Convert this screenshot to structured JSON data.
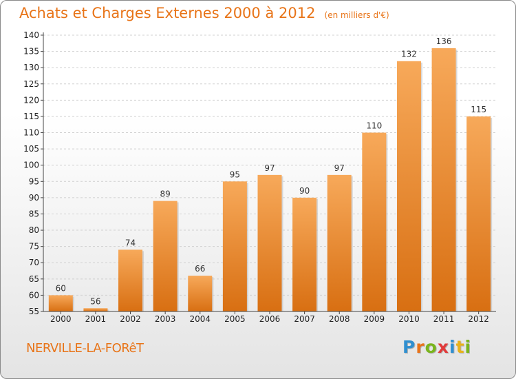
{
  "title": "Achats et Charges Externes 2000 à 2012",
  "unit": "(en milliers d'€)",
  "commune": "NERVILLE-LA-FORêT",
  "logo": {
    "letters": [
      "P",
      "r",
      "o",
      "x",
      "i",
      "t",
      "i"
    ],
    "colors": [
      "#2f8fd0",
      "#e8731a",
      "#7ab51d",
      "#e13b3b",
      "#2f8fd0",
      "#e8b21a",
      "#7ab51d"
    ]
  },
  "colors": {
    "accent": "#e87418",
    "bar_top": "#f7a95a",
    "bar_bottom": "#d86f12",
    "grid": "#d0d0d0"
  },
  "chart_data": {
    "type": "bar",
    "categories": [
      "2000",
      "2001",
      "2002",
      "2003",
      "2004",
      "2005",
      "2006",
      "2007",
      "2008",
      "2009",
      "2010",
      "2011",
      "2012"
    ],
    "values": [
      60,
      56,
      74,
      89,
      66,
      95,
      97,
      90,
      97,
      110,
      132,
      136,
      115
    ],
    "title": "Achats et Charges Externes 2000 à 2012",
    "xlabel": "",
    "ylabel": "",
    "ylim": [
      55,
      140
    ],
    "yticks": [
      55,
      60,
      65,
      70,
      75,
      80,
      85,
      90,
      95,
      100,
      105,
      110,
      115,
      120,
      125,
      130,
      135,
      140
    ],
    "grid": "horizontal dashed",
    "legend": "none"
  }
}
